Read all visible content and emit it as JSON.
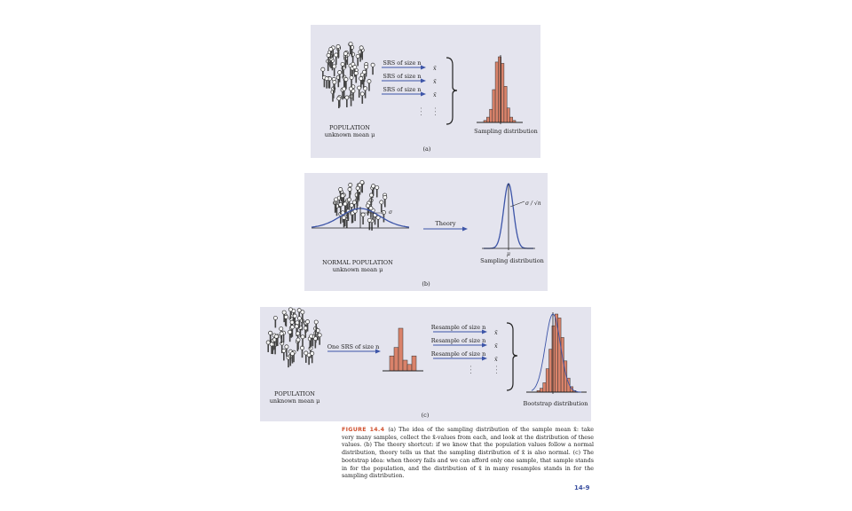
{
  "panel_a": {
    "arrows": [
      "SRS of size n",
      "SRS of size n",
      "SRS of size n"
    ],
    "xbar": "x̄",
    "dots": ". . .",
    "population_title": "POPULATION",
    "population_subtitle": "unknown mean μ",
    "distribution_label": "Sampling distribution",
    "panel_label": "(a)",
    "histogram_heights": [
      0.03,
      0.08,
      0.2,
      0.5,
      0.92,
      1.0,
      0.9,
      0.55,
      0.22,
      0.08,
      0.03
    ]
  },
  "panel_b": {
    "sigma_label": "σ",
    "arrow_label": "Theory",
    "population_title": "NORMAL POPULATION",
    "population_subtitle": "unknown mean μ",
    "curve_label": "σ / √n",
    "mu_label": "μ",
    "distribution_label": "Sampling distribution",
    "panel_label": "(b)"
  },
  "panel_c": {
    "one_srs_label": "One SRS of size n",
    "resamples": [
      "Resample of size n",
      "Resample of size n",
      "Resample of size n"
    ],
    "xbar": "x̄",
    "dots": ". . .",
    "population_title": "POPULATION",
    "population_subtitle": "unknown mean μ",
    "distribution_label": "Bootstrap distribution",
    "panel_label": "(c)",
    "sample_heights": [
      0.35,
      0.55,
      1.0,
      0.25,
      0.15,
      0.35
    ],
    "bootstrap_heights": [
      0.02,
      0.05,
      0.12,
      0.3,
      0.55,
      0.85,
      1.0,
      0.95,
      0.7,
      0.4,
      0.18,
      0.07,
      0.02
    ]
  },
  "caption": {
    "label": "FIGURE 14.4",
    "text": "(a) The idea of the sampling distribution of the sample mean x̄: take very many samples, collect the x̄-values from each, and look at the distribution of these values. (b) The theory shortcut: if we know that the population values follow a normal distribution, theory tells us that the sampling distribution of x̄ is also normal. (c) The bootstrap idea: when theory fails and we can afford only one sample, that sample stands in for the population, and the distribution of x̄ in many resamples stands in for the sampling distribution."
  },
  "page_number": "14-9",
  "colors": {
    "panel_bg": "#e4e4ee",
    "bar_fill": "#d9826a",
    "arrow": "#3d55a8",
    "curve": "#3d55a8"
  }
}
